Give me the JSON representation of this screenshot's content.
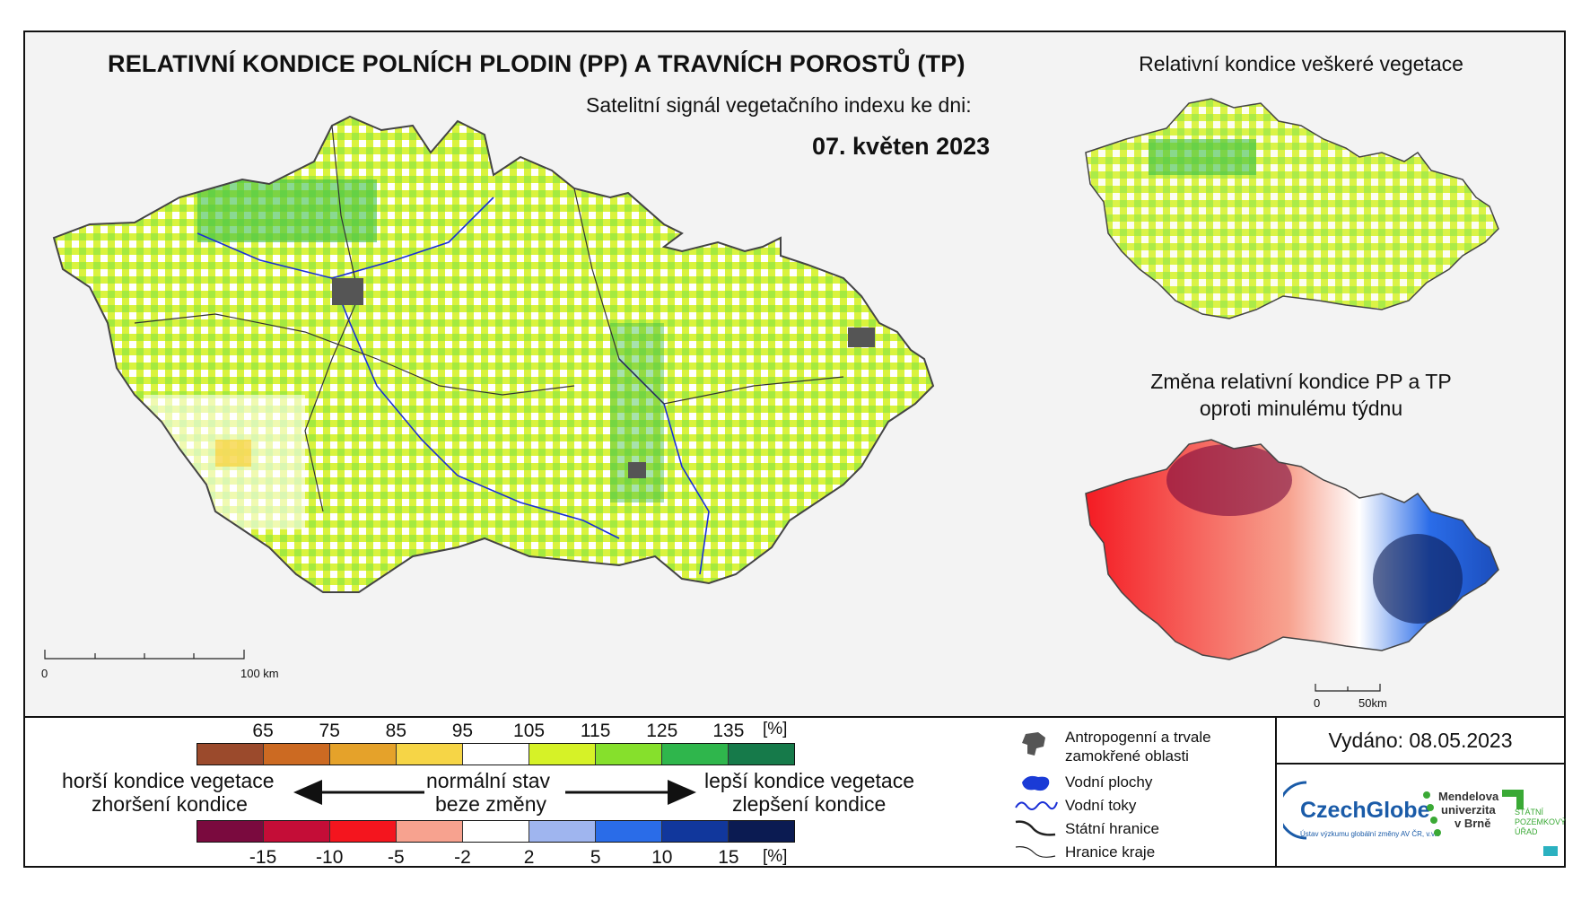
{
  "title": "RELATIVNÍ KONDICE POLNÍCH PLODIN (PP) A TRAVNÍCH POROSTŮ (TP)",
  "subtitle": "Satelitní signál vegetačního indexu ke dni:",
  "date": "07. květen 2023",
  "main_scale": {
    "start": "0",
    "end": "100 km"
  },
  "inset_top": {
    "title": "Relativní kondice veškeré vegetace"
  },
  "inset_bottom": {
    "title_line1": "Změna relativní kondice PP a TP",
    "title_line2": "oproti minulému týdnu"
  },
  "inset_scale": {
    "start": "0",
    "end": "50km"
  },
  "legend": {
    "top_unit": "[%]",
    "top_ticks": [
      "65",
      "75",
      "85",
      "95",
      "105",
      "115",
      "125",
      "135"
    ],
    "top_colors": [
      "#9b4a2c",
      "#cc6a22",
      "#e5a22a",
      "#f6d546",
      "#ffffff",
      "#d6f227",
      "#86e02c",
      "#2fb64c",
      "#167a4a"
    ],
    "bottom_unit": "[%]",
    "bottom_ticks": [
      "-15",
      "-10",
      "-5",
      "-2",
      "2",
      "5",
      "10",
      "15"
    ],
    "bottom_colors": [
      "#7a0a3e",
      "#c40d37",
      "#f4151e",
      "#f7a28f",
      "#ffffff",
      "#9fb5ef",
      "#2a6ce8",
      "#11379c",
      "#0b1b52"
    ],
    "worse_line1": "horší kondice vegetace",
    "worse_line2": "zhoršení kondice",
    "normal_line1": "normální stav",
    "normal_line2": "beze změny",
    "better_line1": "lepší kondice vegetace",
    "better_line2": "zlepšení kondice"
  },
  "key": {
    "anthropogenic_line1": "Antropogenní a trvale",
    "anthropogenic_line2": "zamokřené oblasti",
    "water_bodies": "Vodní plochy",
    "water_courses": "Vodní toky",
    "state_border": "Státní hranice",
    "region_border": "Hranice kraje"
  },
  "issued": "Vydáno: 08.05.2023",
  "logos": {
    "czechglobe": "CzechGlobe",
    "czechglobe_sub": "Ústav výzkumu globální změny AV ČR, v.v.i.",
    "mendel_line1": "Mendelova",
    "mendel_line2": "univerzita",
    "mendel_line3": "v Brně",
    "spu_line1": "STÁTNÍ",
    "spu_line2": "POZEMKOVÝ",
    "spu_line3": "ÚŘAD"
  }
}
